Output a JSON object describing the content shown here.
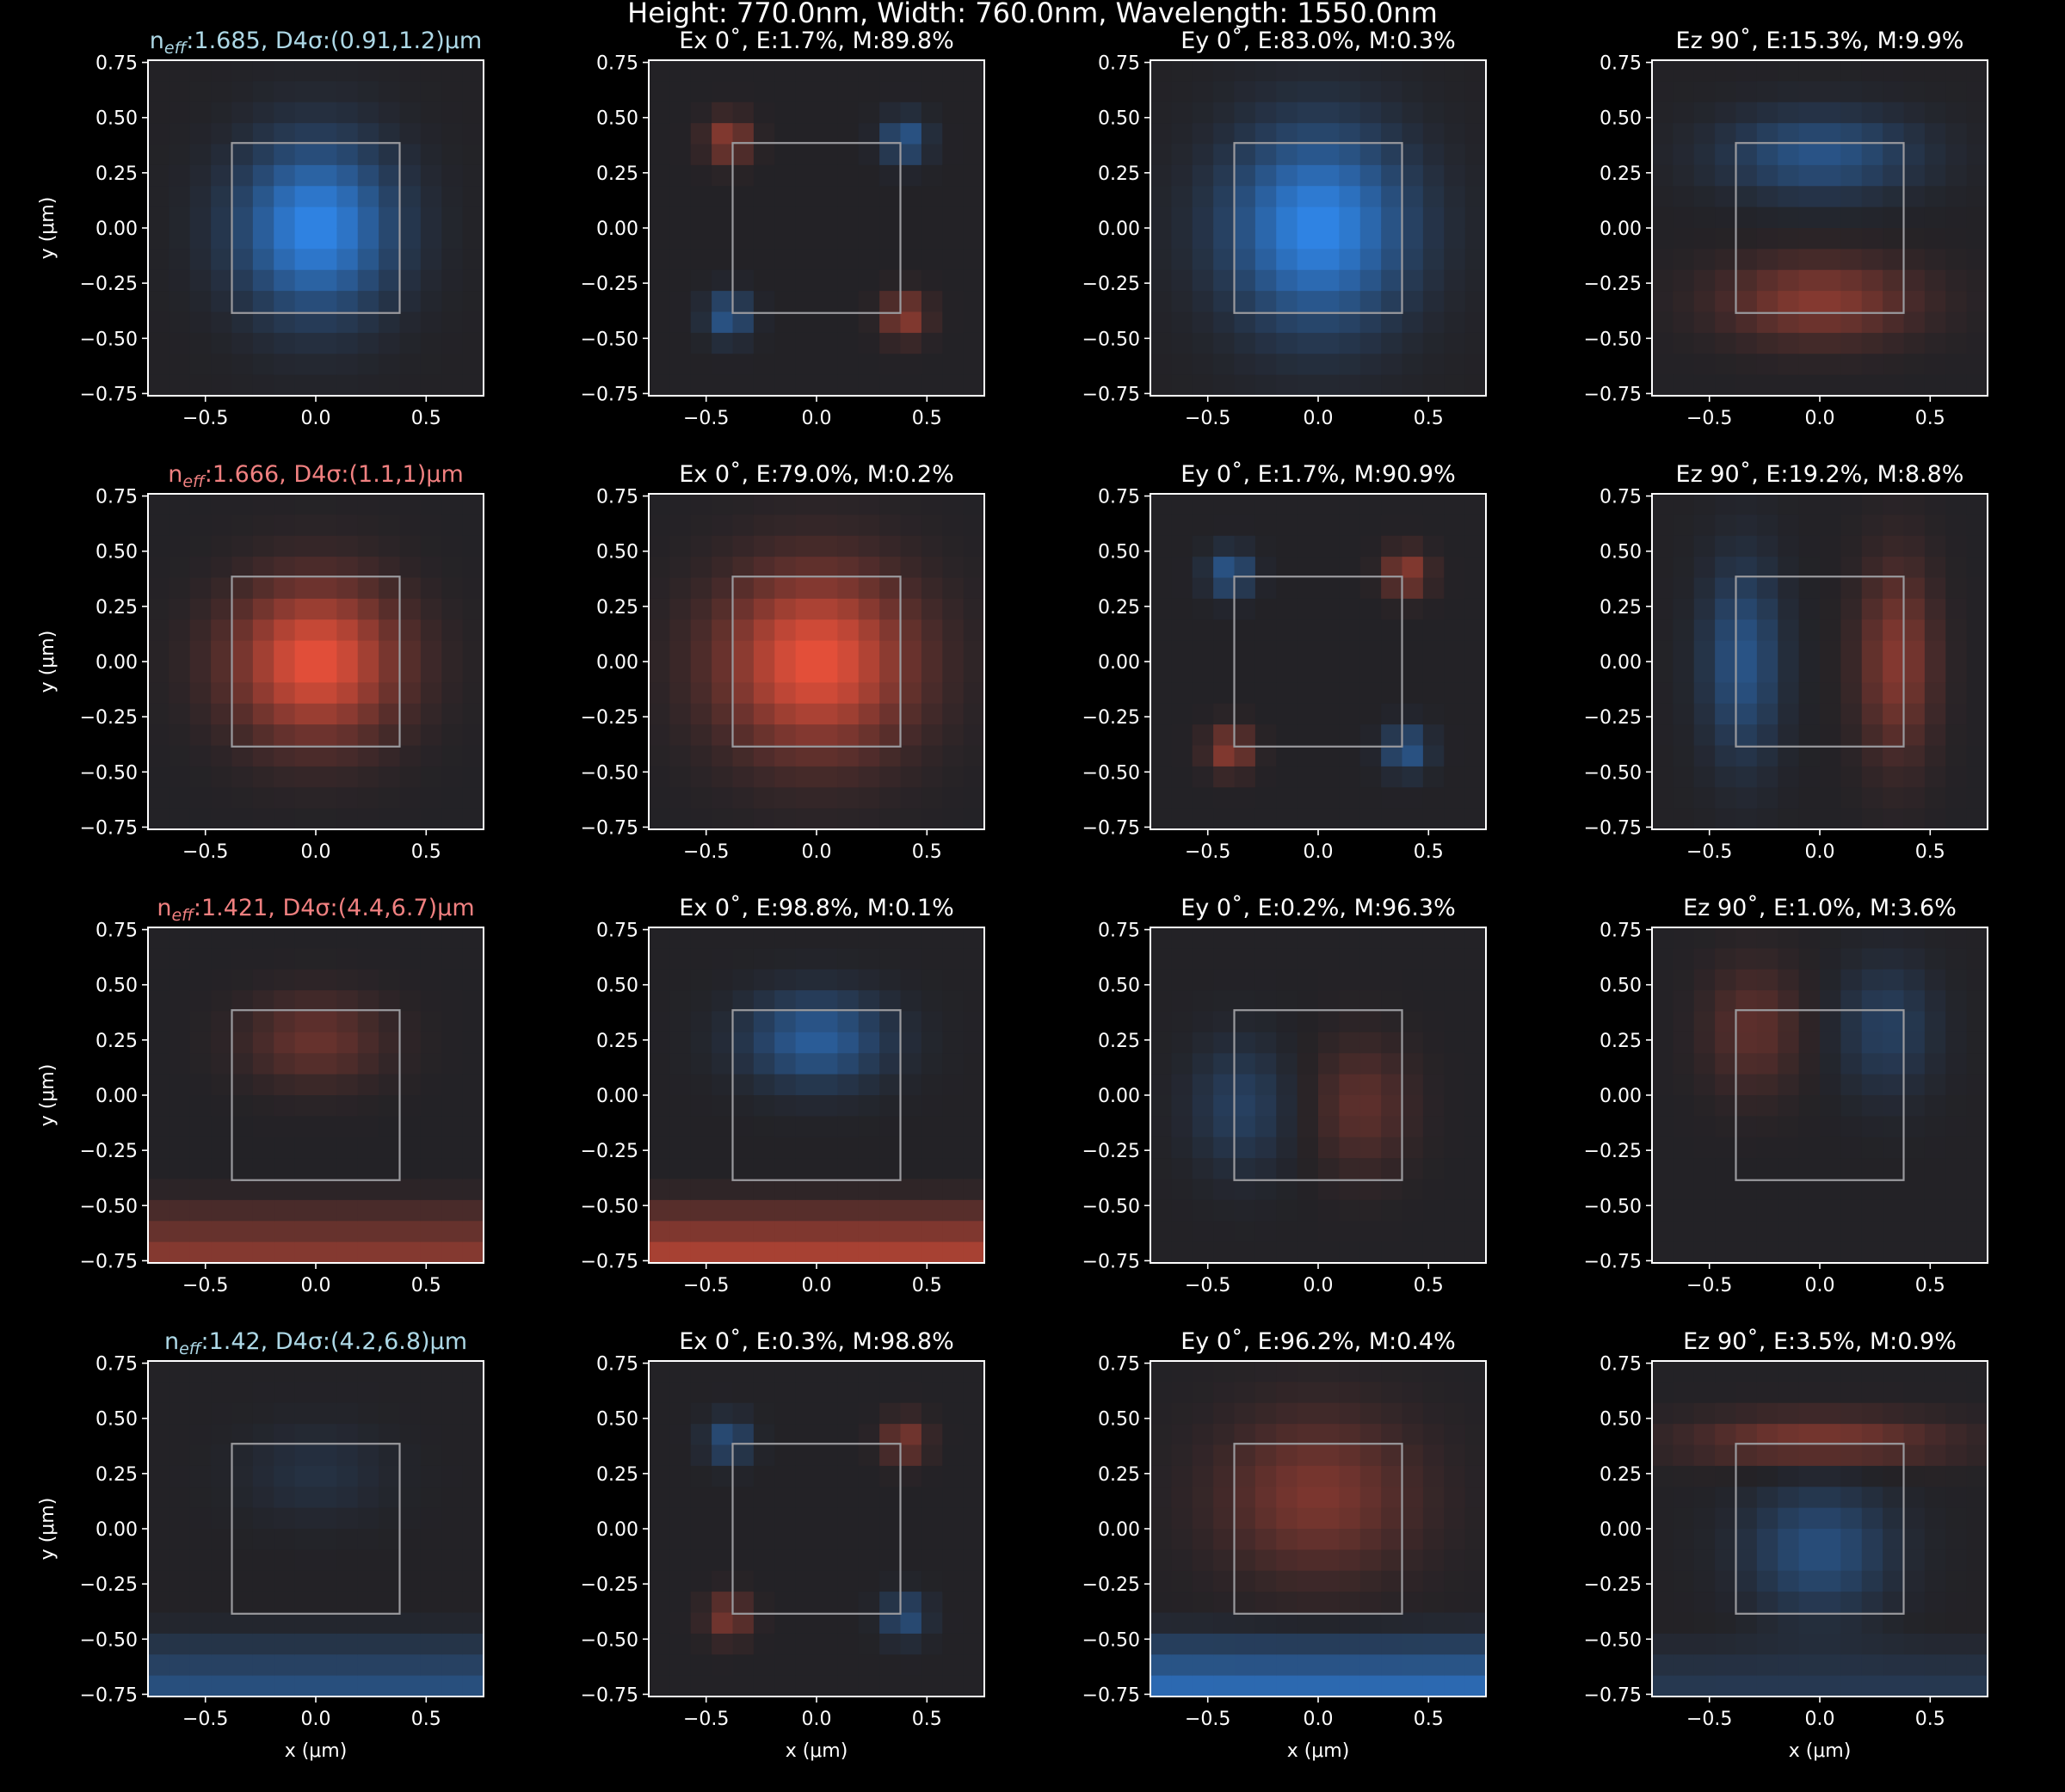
{
  "figure": {
    "title": "Height: 770.0nm, Width: 760.0nm, Wavelength: 1550.0nm",
    "background": "#000000",
    "field_background": "#232226",
    "positive_color": "#e8503a",
    "negative_color": "#2f86e8",
    "waveguide_outline_color": "#9a9a9e",
    "title_color": "#ffffff",
    "te_title_color": "#f08080",
    "tm_title_color": "#add8e6"
  },
  "chart_data": [
    {
      "type": "heatmap",
      "row": 0,
      "col": 0,
      "title_parts": [
        "n",
        "eff",
        ":1.685, D4σ:(0.91,1.2)μm"
      ],
      "title_style": "tm",
      "xlabel": "",
      "ylabel": "y (μm)",
      "xlim": [
        -0.76,
        0.76
      ],
      "ylim": [
        -0.76,
        0.76
      ],
      "xticks": [
        -0.5,
        0.0,
        0.5
      ],
      "xtick_labels": [
        "−0.5",
        "0.0",
        "0.5"
      ],
      "yticks": [
        0.75,
        0.5,
        0.25,
        0.0,
        -0.25,
        -0.5,
        -0.75
      ],
      "ytick_labels": [
        "0.75",
        "0.50",
        "0.25",
        "0.00",
        "−0.25",
        "−0.50",
        "−0.75"
      ],
      "core_box": {
        "x": [
          -0.38,
          0.38
        ],
        "y": [
          -0.385,
          0.385
        ]
      },
      "field": {
        "shape": "gauss",
        "cx": 0.0,
        "cy": 0.0,
        "sx": 0.24,
        "sy": 0.26,
        "amp": -1.0
      }
    },
    {
      "type": "heatmap",
      "row": 0,
      "col": 1,
      "title_parts": [
        "Ex 0˚, E:1.7%, M:89.8%"
      ],
      "title_style": "plain",
      "xlabel": "",
      "ylabel": "",
      "xlim": [
        -0.76,
        0.76
      ],
      "ylim": [
        -0.76,
        0.76
      ],
      "xticks": [
        -0.5,
        0.0,
        0.5
      ],
      "xtick_labels": [
        "−0.5",
        "0.0",
        "0.5"
      ],
      "yticks": [
        0.75,
        0.5,
        0.25,
        0.0,
        -0.25,
        -0.5,
        -0.75
      ],
      "ytick_labels": [
        "0.75",
        "0.50",
        "0.25",
        "0.00",
        "−0.25",
        "−0.50",
        "−0.75"
      ],
      "core_box": {
        "x": [
          -0.38,
          0.38
        ],
        "y": [
          -0.385,
          0.385
        ]
      },
      "field": {
        "shape": "corners",
        "amp": 0.55,
        "sign": 1
      }
    },
    {
      "type": "heatmap",
      "row": 0,
      "col": 2,
      "title_parts": [
        "Ey 0˚, E:83.0%, M:0.3%"
      ],
      "title_style": "plain",
      "xlabel": "",
      "ylabel": "",
      "xlim": [
        -0.76,
        0.76
      ],
      "ylim": [
        -0.76,
        0.76
      ],
      "xticks": [
        -0.5,
        0.0,
        0.5
      ],
      "xtick_labels": [
        "−0.5",
        "0.0",
        "0.5"
      ],
      "yticks": [
        0.75,
        0.5,
        0.25,
        0.0,
        -0.25,
        -0.5,
        -0.75
      ],
      "ytick_labels": [
        "0.75",
        "0.50",
        "0.25",
        "0.00",
        "−0.25",
        "−0.50",
        "−0.75"
      ],
      "core_box": {
        "x": [
          -0.38,
          0.38
        ],
        "y": [
          -0.385,
          0.385
        ]
      },
      "field": {
        "shape": "gauss",
        "cx": 0.0,
        "cy": 0.0,
        "sx": 0.28,
        "sy": 0.3,
        "amp": -1.0
      }
    },
    {
      "type": "heatmap",
      "row": 0,
      "col": 3,
      "title_parts": [
        "Ez 90˚, E:15.3%, M:9.9%"
      ],
      "title_style": "plain",
      "xlabel": "",
      "ylabel": "",
      "xlim": [
        -0.76,
        0.76
      ],
      "ylim": [
        -0.76,
        0.76
      ],
      "xticks": [
        -0.5,
        0.0,
        0.5
      ],
      "xtick_labels": [
        "−0.5",
        "0.0",
        "0.5"
      ],
      "yticks": [
        0.75,
        0.5,
        0.25,
        0.0,
        -0.25,
        -0.5,
        -0.75
      ],
      "ytick_labels": [
        "0.75",
        "0.50",
        "0.25",
        "0.00",
        "−0.25",
        "−0.50",
        "−0.75"
      ],
      "core_box": {
        "x": [
          -0.38,
          0.38
        ],
        "y": [
          -0.385,
          0.385
        ]
      },
      "field": {
        "shape": "dipole-y",
        "amp": 0.5,
        "sign": -1
      }
    },
    {
      "type": "heatmap",
      "row": 1,
      "col": 0,
      "title_parts": [
        "n",
        "eff",
        ":1.666, D4σ:(1.1,1)μm"
      ],
      "title_style": "te",
      "xlabel": "",
      "ylabel": "y (μm)",
      "xlim": [
        -0.76,
        0.76
      ],
      "ylim": [
        -0.76,
        0.76
      ],
      "xticks": [
        -0.5,
        0.0,
        0.5
      ],
      "xtick_labels": [
        "−0.5",
        "0.0",
        "0.5"
      ],
      "yticks": [
        0.75,
        0.5,
        0.25,
        0.0,
        -0.25,
        -0.5,
        -0.75
      ],
      "ytick_labels": [
        "0.75",
        "0.50",
        "0.25",
        "0.00",
        "−0.25",
        "−0.50",
        "−0.75"
      ],
      "core_box": {
        "x": [
          -0.38,
          0.38
        ],
        "y": [
          -0.385,
          0.385
        ]
      },
      "field": {
        "shape": "gauss",
        "cx": 0.0,
        "cy": 0.0,
        "sx": 0.26,
        "sy": 0.24,
        "amp": 1.0
      }
    },
    {
      "type": "heatmap",
      "row": 1,
      "col": 1,
      "title_parts": [
        "Ex 0˚, E:79.0%, M:0.2%"
      ],
      "title_style": "plain",
      "xlabel": "",
      "ylabel": "",
      "xlim": [
        -0.76,
        0.76
      ],
      "ylim": [
        -0.76,
        0.76
      ],
      "xticks": [
        -0.5,
        0.0,
        0.5
      ],
      "xtick_labels": [
        "−0.5",
        "0.0",
        "0.5"
      ],
      "yticks": [
        0.75,
        0.5,
        0.25,
        0.0,
        -0.25,
        -0.5,
        -0.75
      ],
      "ytick_labels": [
        "0.75",
        "0.50",
        "0.25",
        "0.00",
        "−0.25",
        "−0.50",
        "−0.75"
      ],
      "core_box": {
        "x": [
          -0.38,
          0.38
        ],
        "y": [
          -0.385,
          0.385
        ]
      },
      "field": {
        "shape": "gauss",
        "cx": 0.0,
        "cy": 0.0,
        "sx": 0.3,
        "sy": 0.28,
        "amp": 1.0
      }
    },
    {
      "type": "heatmap",
      "row": 1,
      "col": 2,
      "title_parts": [
        "Ey 0˚, E:1.7%, M:90.9%"
      ],
      "title_style": "plain",
      "xlabel": "",
      "ylabel": "",
      "xlim": [
        -0.76,
        0.76
      ],
      "ylim": [
        -0.76,
        0.76
      ],
      "xticks": [
        -0.5,
        0.0,
        0.5
      ],
      "xtick_labels": [
        "−0.5",
        "0.0",
        "0.5"
      ],
      "yticks": [
        0.75,
        0.5,
        0.25,
        0.0,
        -0.25,
        -0.5,
        -0.75
      ],
      "ytick_labels": [
        "0.75",
        "0.50",
        "0.25",
        "0.00",
        "−0.25",
        "−0.50",
        "−0.75"
      ],
      "core_box": {
        "x": [
          -0.38,
          0.38
        ],
        "y": [
          -0.385,
          0.385
        ]
      },
      "field": {
        "shape": "corners",
        "amp": 0.55,
        "sign": -1
      }
    },
    {
      "type": "heatmap",
      "row": 1,
      "col": 3,
      "title_parts": [
        "Ez 90˚, E:19.2%, M:8.8%"
      ],
      "title_style": "plain",
      "xlabel": "",
      "ylabel": "",
      "xlim": [
        -0.76,
        0.76
      ],
      "ylim": [
        -0.76,
        0.76
      ],
      "xticks": [
        -0.5,
        0.0,
        0.5
      ],
      "xtick_labels": [
        "−0.5",
        "0.0",
        "0.5"
      ],
      "yticks": [
        0.75,
        0.5,
        0.25,
        0.0,
        -0.25,
        -0.5,
        -0.75
      ],
      "ytick_labels": [
        "0.75",
        "0.50",
        "0.25",
        "0.00",
        "−0.25",
        "−0.50",
        "−0.75"
      ],
      "core_box": {
        "x": [
          -0.38,
          0.38
        ],
        "y": [
          -0.385,
          0.385
        ]
      },
      "field": {
        "shape": "dipole-x",
        "amp": 0.5,
        "sign": 1
      }
    },
    {
      "type": "heatmap",
      "row": 2,
      "col": 0,
      "title_parts": [
        "n",
        "eff",
        ":1.421, D4σ:(4.4,6.7)μm"
      ],
      "title_style": "te",
      "xlabel": "",
      "ylabel": "y (μm)",
      "xlim": [
        -0.76,
        0.76
      ],
      "ylim": [
        -0.76,
        0.76
      ],
      "xticks": [
        -0.5,
        0.0,
        0.5
      ],
      "xtick_labels": [
        "−0.5",
        "0.0",
        "0.5"
      ],
      "yticks": [
        0.75,
        0.5,
        0.25,
        0.0,
        -0.25,
        -0.5,
        -0.75
      ],
      "ytick_labels": [
        "0.75",
        "0.50",
        "0.25",
        "0.00",
        "−0.25",
        "−0.50",
        "−0.75"
      ],
      "core_box": {
        "x": [
          -0.38,
          0.38
        ],
        "y": [
          -0.385,
          0.385
        ]
      },
      "field": {
        "shape": "substrate",
        "core_amp": 0.35,
        "sub_amp": 0.55,
        "sign": 1
      }
    },
    {
      "type": "heatmap",
      "row": 2,
      "col": 1,
      "title_parts": [
        "Ex 0˚, E:98.8%, M:0.1%"
      ],
      "title_style": "plain",
      "xlabel": "",
      "ylabel": "",
      "xlim": [
        -0.76,
        0.76
      ],
      "ylim": [
        -0.76,
        0.76
      ],
      "xticks": [
        -0.5,
        0.0,
        0.5
      ],
      "xtick_labels": [
        "−0.5",
        "0.0",
        "0.5"
      ],
      "yticks": [
        0.75,
        0.5,
        0.25,
        0.0,
        -0.25,
        -0.5,
        -0.75
      ],
      "ytick_labels": [
        "0.75",
        "0.50",
        "0.25",
        "0.00",
        "−0.25",
        "−0.50",
        "−0.75"
      ],
      "core_box": {
        "x": [
          -0.38,
          0.38
        ],
        "y": [
          -0.385,
          0.385
        ]
      },
      "field": {
        "shape": "substrate",
        "core_amp": -0.6,
        "sub_amp": 0.75,
        "sign": 1
      }
    },
    {
      "type": "heatmap",
      "row": 2,
      "col": 2,
      "title_parts": [
        "Ey 0˚, E:0.2%, M:96.3%"
      ],
      "title_style": "plain",
      "xlabel": "",
      "ylabel": "",
      "xlim": [
        -0.76,
        0.76
      ],
      "ylim": [
        -0.76,
        0.76
      ],
      "xticks": [
        -0.5,
        0.0,
        0.5
      ],
      "xtick_labels": [
        "−0.5",
        "0.0",
        "0.5"
      ],
      "yticks": [
        0.75,
        0.5,
        0.25,
        0.0,
        -0.25,
        -0.5,
        -0.75
      ],
      "ytick_labels": [
        "0.75",
        "0.50",
        "0.25",
        "0.00",
        "−0.25",
        "−0.50",
        "−0.75"
      ],
      "core_box": {
        "x": [
          -0.38,
          0.38
        ],
        "y": [
          -0.385,
          0.385
        ]
      },
      "field": {
        "shape": "dipole-x-low",
        "amp": 0.3,
        "sign": 1
      }
    },
    {
      "type": "heatmap",
      "row": 2,
      "col": 3,
      "title_parts": [
        "Ez 90˚, E:1.0%, M:3.6%"
      ],
      "title_style": "plain",
      "xlabel": "",
      "ylabel": "",
      "xlim": [
        -0.76,
        0.76
      ],
      "ylim": [
        -0.76,
        0.76
      ],
      "xticks": [
        -0.5,
        0.0,
        0.5
      ],
      "xtick_labels": [
        "−0.5",
        "0.0",
        "0.5"
      ],
      "yticks": [
        0.75,
        0.5,
        0.25,
        0.0,
        -0.25,
        -0.5,
        -0.75
      ],
      "ytick_labels": [
        "0.75",
        "0.50",
        "0.25",
        "0.00",
        "−0.25",
        "−0.50",
        "−0.75"
      ],
      "core_box": {
        "x": [
          -0.38,
          0.38
        ],
        "y": [
          -0.385,
          0.385
        ]
      },
      "field": {
        "shape": "dipole-x-high",
        "amp": 0.3,
        "sign": -1
      }
    },
    {
      "type": "heatmap",
      "row": 3,
      "col": 0,
      "title_parts": [
        "n",
        "eff",
        ":1.42, D4σ:(4.2,6.8)μm"
      ],
      "title_style": "tm",
      "xlabel": "x (μm)",
      "ylabel": "y (μm)",
      "xlim": [
        -0.76,
        0.76
      ],
      "ylim": [
        -0.76,
        0.76
      ],
      "xticks": [
        -0.5,
        0.0,
        0.5
      ],
      "xtick_labels": [
        "−0.5",
        "0.0",
        "0.5"
      ],
      "yticks": [
        0.75,
        0.5,
        0.25,
        0.0,
        -0.25,
        -0.5,
        -0.75
      ],
      "ytick_labels": [
        "0.75",
        "0.50",
        "0.25",
        "0.00",
        "−0.25",
        "−0.50",
        "−0.75"
      ],
      "core_box": {
        "x": [
          -0.38,
          0.38
        ],
        "y": [
          -0.385,
          0.385
        ]
      },
      "field": {
        "shape": "substrate",
        "core_amp": -0.15,
        "sub_amp": 0.5,
        "sign": -1
      }
    },
    {
      "type": "heatmap",
      "row": 3,
      "col": 1,
      "title_parts": [
        "Ex 0˚, E:0.3%, M:98.8%"
      ],
      "title_style": "plain",
      "xlabel": "x (μm)",
      "ylabel": "",
      "xlim": [
        -0.76,
        0.76
      ],
      "ylim": [
        -0.76,
        0.76
      ],
      "xticks": [
        -0.5,
        0.0,
        0.5
      ],
      "xtick_labels": [
        "−0.5",
        "0.0",
        "0.5"
      ],
      "yticks": [
        0.75,
        0.5,
        0.25,
        0.0,
        -0.25,
        -0.5,
        -0.75
      ],
      "ytick_labels": [
        "0.75",
        "0.50",
        "0.25",
        "0.00",
        "−0.25",
        "−0.50",
        "−0.75"
      ],
      "core_box": {
        "x": [
          -0.38,
          0.38
        ],
        "y": [
          -0.385,
          0.385
        ]
      },
      "field": {
        "shape": "corners",
        "amp": 0.45,
        "sign": -1
      }
    },
    {
      "type": "heatmap",
      "row": 3,
      "col": 2,
      "title_parts": [
        "Ey 0˚, E:96.2%, M:0.4%"
      ],
      "title_style": "plain",
      "xlabel": "x (μm)",
      "ylabel": "",
      "xlim": [
        -0.76,
        0.76
      ],
      "ylim": [
        -0.76,
        0.76
      ],
      "xticks": [
        -0.5,
        0.0,
        0.5
      ],
      "xtick_labels": [
        "−0.5",
        "0.0",
        "0.5"
      ],
      "yticks": [
        0.75,
        0.5,
        0.25,
        0.0,
        -0.25,
        -0.5,
        -0.75
      ],
      "ytick_labels": [
        "0.75",
        "0.50",
        "0.25",
        "0.00",
        "−0.25",
        "−0.50",
        "−0.75"
      ],
      "core_box": {
        "x": [
          -0.38,
          0.38
        ],
        "y": [
          -0.385,
          0.385
        ]
      },
      "field": {
        "shape": "substrate-top",
        "core_amp": 0.45,
        "sub_amp": 0.8,
        "sign": -1
      }
    },
    {
      "type": "heatmap",
      "row": 3,
      "col": 3,
      "title_parts": [
        "Ez 90˚, E:3.5%, M:0.9%"
      ],
      "title_style": "plain",
      "xlabel": "x (μm)",
      "ylabel": "",
      "xlim": [
        -0.76,
        0.76
      ],
      "ylim": [
        -0.76,
        0.76
      ],
      "xticks": [
        -0.5,
        0.0,
        0.5
      ],
      "xtick_labels": [
        "−0.5",
        "0.0",
        "0.5"
      ],
      "yticks": [
        0.75,
        0.5,
        0.25,
        0.0,
        -0.25,
        -0.5,
        -0.75
      ],
      "ytick_labels": [
        "0.75",
        "0.50",
        "0.25",
        "0.00",
        "−0.25",
        "−0.50",
        "−0.75"
      ],
      "core_box": {
        "x": [
          -0.38,
          0.38
        ],
        "y": [
          -0.385,
          0.385
        ]
      },
      "field": {
        "shape": "dipole-y-sub",
        "amp": 0.45,
        "sign": 1
      }
    }
  ]
}
